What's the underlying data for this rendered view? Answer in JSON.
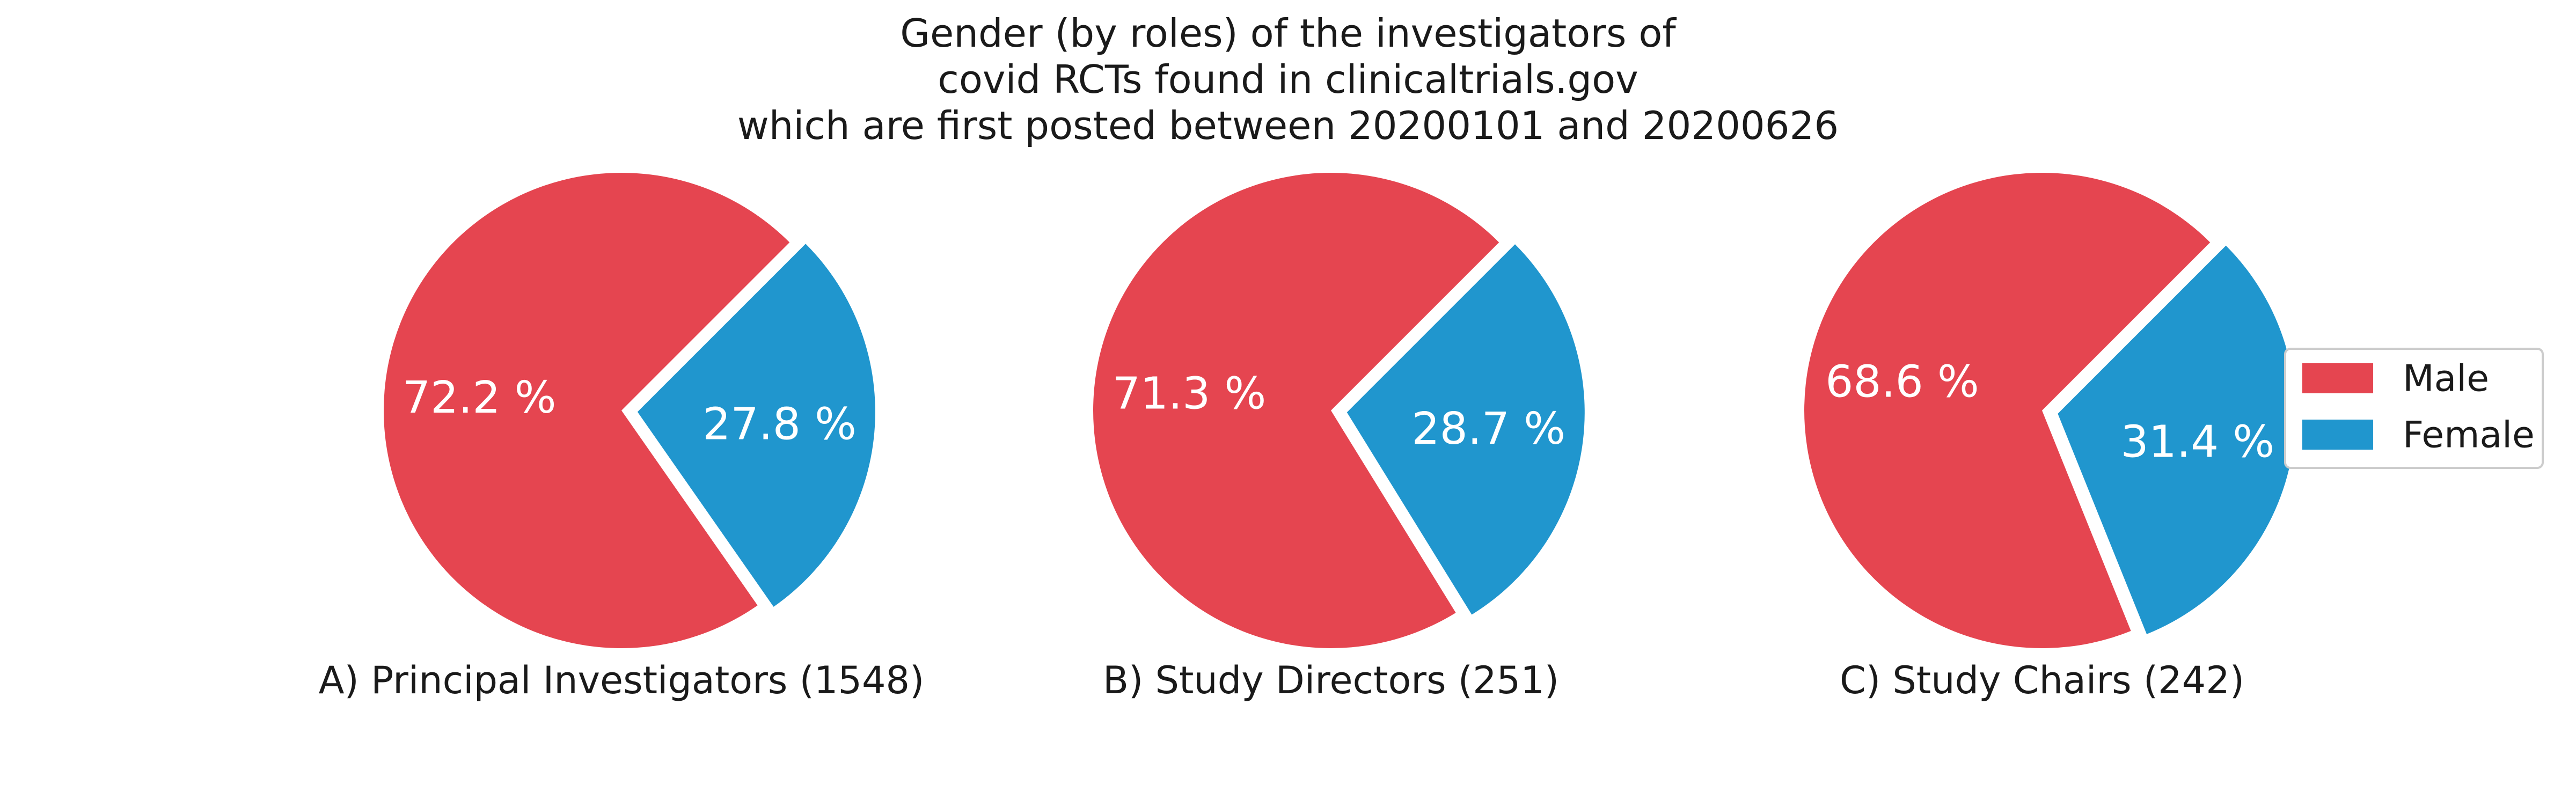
{
  "chart_data": {
    "type": "pie",
    "title": "Gender (by roles) of the investigators of\ncovid RCTs found in clinicaltrials.gov\nwhich are first posted between 20200101 and 20200626",
    "legend": {
      "placement": "right",
      "entries": [
        {
          "label": "Male",
          "color": "#e54550"
        },
        {
          "label": "Female",
          "color": "#2096ce"
        }
      ]
    },
    "series_colors": {
      "Male": "#e54550",
      "Female": "#2096ce"
    },
    "pies": [
      {
        "caption": "A) Principal Investigators (1548)",
        "slices": [
          {
            "label": "Male",
            "value": 72.2,
            "text": "72.2 %"
          },
          {
            "label": "Female",
            "value": 27.8,
            "text": "27.8 %"
          }
        ]
      },
      {
        "caption": "B) Study Directors (251)",
        "slices": [
          {
            "label": "Male",
            "value": 71.3,
            "text": "71.3 %"
          },
          {
            "label": "Female",
            "value": 28.7,
            "text": "28.7 %"
          }
        ]
      },
      {
        "caption": "C) Study Chairs (242)",
        "slices": [
          {
            "label": "Male",
            "value": 68.6,
            "text": "68.6 %"
          },
          {
            "label": "Female",
            "value": 31.4,
            "text": "31.4 %"
          }
        ]
      }
    ]
  }
}
